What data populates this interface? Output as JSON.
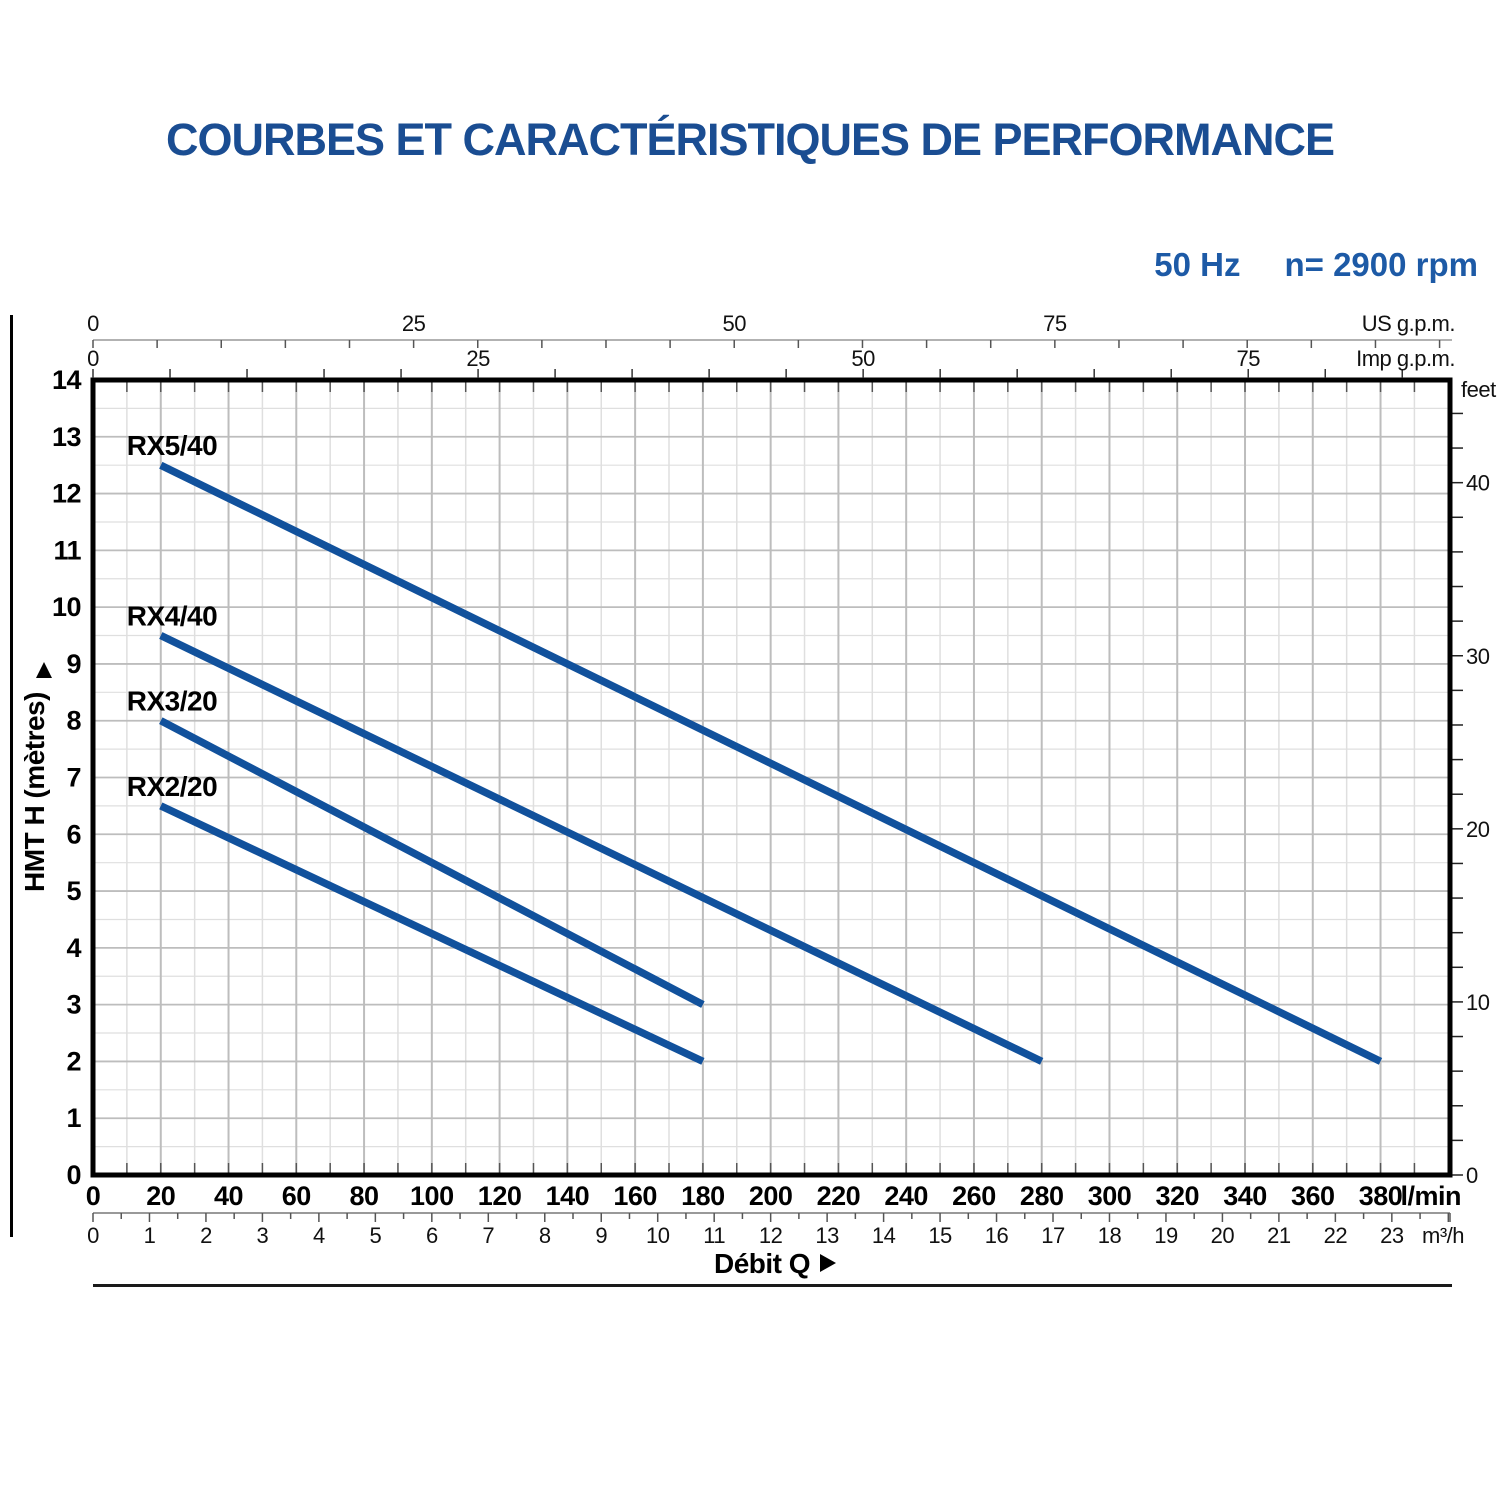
{
  "page": {
    "title": "COURBES ET CARACTÉRISTIQUES DE PERFORMANCE",
    "frequency": "50 Hz",
    "speed": "n= 2900 rpm"
  },
  "chart_data": {
    "type": "line",
    "title": "COURBES ET CARACTÉRISTIQUES DE PERFORMANCE",
    "condition": "50 Hz  n= 2900 rpm",
    "xlabel": "Débit Q",
    "x_axis": {
      "primary_lmin": {
        "unit": "l/min",
        "min": 0,
        "max": 400.5,
        "grid_minor_step": 10,
        "grid_major_step": 20,
        "labels": [
          0,
          20,
          40,
          60,
          80,
          100,
          120,
          140,
          160,
          180,
          200,
          220,
          240,
          260,
          280,
          300,
          320,
          340,
          360,
          380
        ]
      },
      "secondary_m3h": {
        "unit": "m³/h",
        "lmin_per_unit": 16.6667,
        "tick_step": 0.5,
        "labels": [
          0,
          1,
          2,
          3,
          4,
          5,
          6,
          7,
          8,
          9,
          10,
          11,
          12,
          13,
          14,
          15,
          16,
          17,
          18,
          19,
          20,
          21,
          22,
          23
        ]
      },
      "top_us_gpm": {
        "unit": "US g.p.m.",
        "lmin_per_unit": 3.785,
        "tick_step": 5,
        "labels": [
          0,
          25,
          50,
          75
        ]
      },
      "top_imp_gpm": {
        "unit": "Imp g.p.m.",
        "lmin_per_unit": 4.546,
        "tick_step": 5,
        "labels": [
          0,
          25,
          50,
          75
        ]
      }
    },
    "y_axis": {
      "primary_metres": {
        "label": "HMT H (mètres)",
        "unit": "m",
        "min": 0,
        "max": 14,
        "grid_minor_step": 0.5,
        "grid_major_step": 1,
        "labels": [
          0,
          1,
          2,
          3,
          4,
          5,
          6,
          7,
          8,
          9,
          10,
          11,
          12,
          13,
          14
        ]
      },
      "secondary_feet": {
        "unit": "feet",
        "m_per_unit": 0.3048,
        "tick_step": 2,
        "labels": [
          0,
          10,
          20,
          30,
          40
        ]
      }
    },
    "series": [
      {
        "name": "RX5/40",
        "points_lmin_m": [
          [
            20,
            12.5
          ],
          [
            380,
            2
          ]
        ]
      },
      {
        "name": "RX4/40",
        "points_lmin_m": [
          [
            20,
            9.5
          ],
          [
            280,
            2
          ]
        ]
      },
      {
        "name": "RX3/20",
        "points_lmin_m": [
          [
            20,
            8
          ],
          [
            180,
            3
          ]
        ]
      },
      {
        "name": "RX2/20",
        "points_lmin_m": [
          [
            20,
            6.5
          ],
          [
            180,
            2
          ]
        ]
      }
    ],
    "colors": {
      "curve": "#11519c",
      "title_blue": "#1a4d92",
      "condition_blue": "#1d5aa6",
      "grid_major": "#bdbdbd",
      "grid_minor": "#dfdfdf",
      "axis_gray": "#999999",
      "tick_dark": "#555555",
      "text": "#111111",
      "frame": "#000000"
    },
    "legend_position": "curve-labels-inline",
    "grid": true
  }
}
